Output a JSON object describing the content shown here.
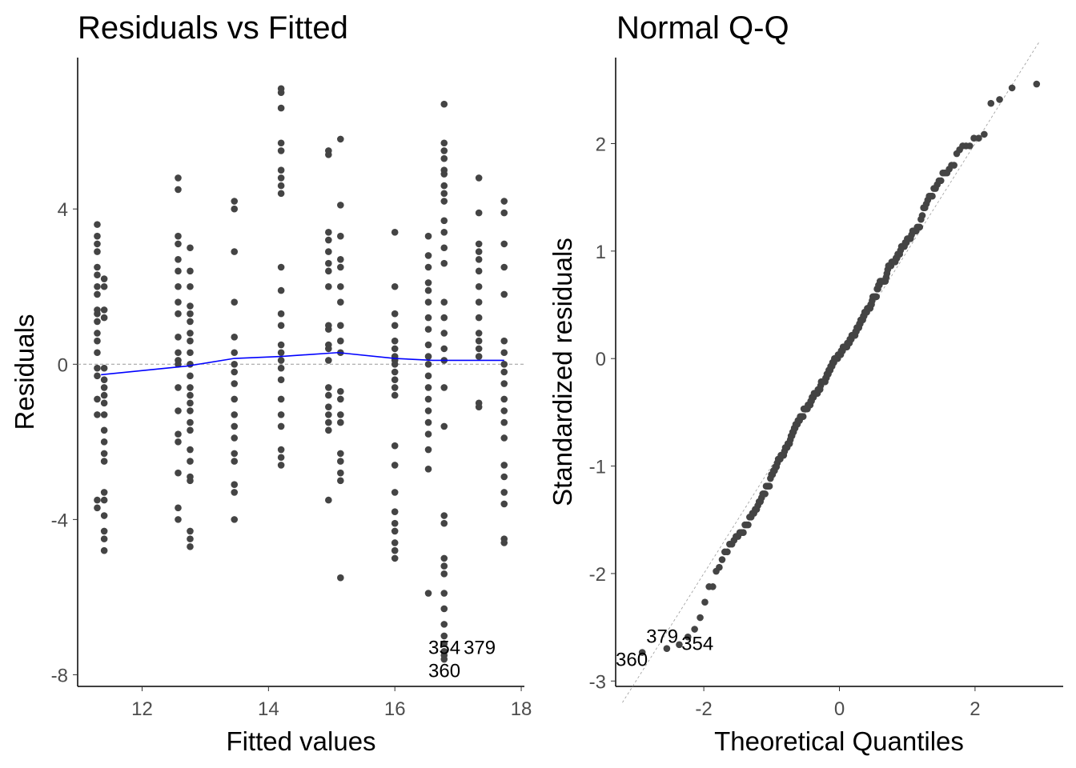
{
  "chart_data": [
    {
      "type": "scatter",
      "title": "Residuals vs Fitted",
      "xlabel": "Fitted values",
      "ylabel": "Residuals",
      "xlim": [
        10.98,
        18.05
      ],
      "ylim": [
        -8.3,
        7.9
      ],
      "xticks": [
        12,
        14,
        16,
        18
      ],
      "yticks": [
        -8,
        -4,
        0,
        4
      ],
      "xtick_labels": [
        "12",
        "14",
        "16",
        "18"
      ],
      "ytick_labels": [
        "-8",
        "-4",
        "0",
        "4"
      ],
      "reference_line": 0,
      "groups": [
        {
          "x": 11.29,
          "r": [
            3.6,
            3.3,
            3.1,
            2.9,
            2.5,
            2.3,
            2.0,
            1.8,
            1.4,
            1.3,
            1.1,
            0.8,
            0.6,
            0.3,
            -0.1,
            -0.3,
            -0.9,
            -1.3,
            -3.5,
            -3.7
          ]
        },
        {
          "x": 11.4,
          "r": [
            2.2,
            2.0,
            1.4,
            1.2,
            -0.1,
            -0.4,
            -0.6,
            -0.8,
            -1.0,
            -1.3,
            -1.7,
            -2.0,
            -2.3,
            -2.5,
            -3.3,
            -3.5,
            -3.9,
            -4.3,
            -4.5,
            -4.8
          ]
        },
        {
          "x": 12.57,
          "r": [
            4.8,
            4.5,
            3.3,
            3.1,
            2.7,
            2.4,
            2.0,
            1.6,
            1.3,
            0.7,
            0.3,
            0.1,
            0.0,
            -0.6,
            -1.2,
            -1.8,
            -2.0,
            -2.8,
            -3.7,
            -4.0
          ]
        },
        {
          "x": 12.76,
          "r": [
            3.0,
            2.4,
            2.0,
            1.5,
            1.3,
            1.1,
            0.8,
            0.6,
            0.3,
            0.0,
            -0.3,
            -0.6,
            -0.8,
            -1.0,
            -1.2,
            -1.5,
            -1.7,
            -2.2,
            -2.5,
            -2.9,
            -3.0,
            -4.3,
            -4.5,
            -4.7
          ]
        },
        {
          "x": 13.46,
          "r": [
            4.2,
            4.0,
            2.9,
            1.6,
            0.7,
            0.3,
            0.0,
            -0.2,
            -0.5,
            -0.9,
            -1.3,
            -1.6,
            -1.9,
            -2.3,
            -2.5,
            -3.1,
            -3.3,
            -4.0
          ]
        },
        {
          "x": 14.2,
          "r": [
            7.1,
            7.0,
            6.6,
            5.7,
            5.5,
            5.0,
            4.8,
            4.6,
            4.4,
            2.5,
            1.9,
            1.3,
            1.0,
            0.5,
            0.3,
            0.1,
            -0.1,
            -0.4,
            -0.9,
            -1.3,
            -1.6,
            -2.2,
            -2.4,
            -2.6
          ]
        },
        {
          "x": 14.95,
          "r": [
            5.5,
            5.4,
            3.4,
            3.2,
            2.9,
            2.6,
            2.4,
            2.0,
            1.0,
            0.9,
            0.5,
            0.4,
            0.1,
            -0.6,
            -0.8,
            -1.1,
            -1.3,
            -1.5,
            -1.7,
            -3.5
          ]
        },
        {
          "x": 15.14,
          "r": [
            5.8,
            4.1,
            3.3,
            2.7,
            2.5,
            2.0,
            1.6,
            1.0,
            0.6,
            0.3,
            -0.7,
            -0.9,
            -1.3,
            -1.5,
            -2.3,
            -2.5,
            -2.8,
            -3.0,
            -5.5
          ]
        },
        {
          "x": 16.0,
          "r": [
            3.4,
            2.0,
            1.3,
            1.0,
            0.6,
            0.4,
            0.2,
            0.1,
            0.0,
            -0.2,
            -0.4,
            -0.6,
            -0.8,
            -2.1,
            -2.6,
            -3.3,
            -3.8,
            -4.1,
            -4.3,
            -4.6,
            -4.8,
            -5.0
          ]
        },
        {
          "x": 16.53,
          "r": [
            3.3,
            2.8,
            2.5,
            2.1,
            1.9,
            1.6,
            1.2,
            0.9,
            0.5,
            0.2,
            0.0,
            -0.3,
            -0.6,
            -0.9,
            -1.2,
            -1.5,
            -1.8,
            -2.2,
            -2.7,
            -5.9
          ]
        },
        {
          "x": 16.78,
          "r": [
            6.7,
            5.7,
            5.5,
            5.3,
            5.0,
            4.9,
            4.6,
            4.4,
            4.2,
            3.7,
            3.4,
            3.0,
            2.6,
            1.6,
            1.2,
            0.8,
            0.4,
            0.1,
            -0.6,
            -1.6,
            -3.9,
            -4.1,
            -5.0,
            -5.2,
            -5.4,
            -5.9,
            -6.3,
            -6.7,
            -7.0,
            -7.2,
            -7.4,
            -7.5,
            -7.6
          ]
        },
        {
          "x": 17.33,
          "r": [
            4.8,
            3.9,
            3.1,
            2.9,
            2.7,
            2.4,
            2.0,
            1.6,
            1.2,
            0.8,
            0.6,
            0.4,
            0.2,
            -1.0,
            -1.1
          ]
        },
        {
          "x": 17.73,
          "r": [
            4.2,
            3.9,
            3.1,
            2.5,
            1.8,
            0.6,
            0.3,
            0.0,
            -0.2,
            -0.5,
            -0.9,
            -1.2,
            -1.5,
            -1.9,
            -2.6,
            -2.9,
            -3.3,
            -3.6,
            -4.5,
            -4.6
          ]
        }
      ],
      "smooth": {
        "x": [
          11.35,
          12.7,
          13.46,
          14.2,
          15.1,
          16.0,
          16.6,
          17.73
        ],
        "y": [
          -0.27,
          -0.05,
          0.15,
          0.2,
          0.3,
          0.15,
          0.1,
          0.1
        ],
        "color": "#0000ff"
      },
      "point_color": "#444444",
      "labels": [
        {
          "text": "354",
          "x": 16.53,
          "y": -7.45
        },
        {
          "text": "379",
          "x": 17.05,
          "y": -7.45
        },
        {
          "text": "360",
          "x": 16.53,
          "y": -7.9
        }
      ]
    },
    {
      "type": "scatter",
      "title": "Normal Q-Q",
      "xlabel": "Theoretical Quantiles",
      "ylabel": "Standardized residuals",
      "xlim": [
        -3.3,
        3.3
      ],
      "ylim": [
        -3.05,
        2.8
      ],
      "xticks": [
        -2,
        0,
        2
      ],
      "yticks": [
        -3,
        -2,
        -1,
        0,
        1,
        2
      ],
      "xtick_labels": [
        "-2",
        "0",
        "2"
      ],
      "ytick_labels": [
        "-3",
        "-2",
        "-1",
        "0",
        "1",
        "2"
      ],
      "residual_scale": 2.78,
      "reference_line": {
        "intercept": 0,
        "slope": 1
      },
      "labels": [
        {
          "text": "360",
          "x": -3.3,
          "y": -2.8
        },
        {
          "text": "379",
          "x": -2.85,
          "y": -2.65
        },
        {
          "text": "354",
          "x": -2.6,
          "y": -2.65
        }
      ]
    }
  ]
}
